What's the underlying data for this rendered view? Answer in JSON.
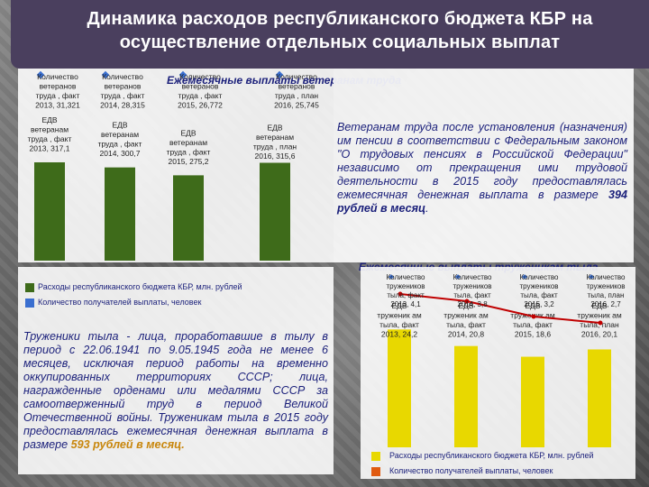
{
  "title": "Динамика расходов республиканского бюджета КБР на осуществление отдельных социальных выплат",
  "veterans": {
    "chart_title": "Ежемесячные выплаты ветеранам труда",
    "paragraph": {
      "part1": "Ветеранам труда после установления (назначения) им пенсии в соответствии с Федеральным законом \"О трудовых пенсиях в Российской Федерации\" независимо от прекращения ими трудовой деятельности в 2015 году предоставлялась ежемесячная денежная выплата в размере ",
      "amount": "394 рублей в месяц",
      "part2": "."
    }
  },
  "toilers": {
    "chart_title": "Ежемесячные выплаты труженикам тыла",
    "paragraph": {
      "part1": "Труженики тыла - лица, проработавшие в тылу в период с 22.06.1941 по 9.05.1945 года не менее 6 месяцев, исключая период работы на временно оккупированных территориях СССР; лица, награжденные орденами или медалями СССР за самоотверженный труд в период Великой Отечественной войны. Труженикам тыла в 2015 году предоставлялась ежемесячная денежная выплата в размере ",
      "amount": "593 рублей в месяц.",
      "part2": ""
    }
  },
  "legend": {
    "expenses": "Расходы республиканского бюджета КБР, млн. рублей",
    "recipients": "Количество получателей выплаты, человек"
  },
  "chart_data": [
    {
      "type": "bar",
      "title": "Ежемесячные выплаты ветеранам труда",
      "categories": [
        "2013",
        "2014",
        "2015",
        "2016"
      ],
      "series": [
        {
          "name": "Расходы республиканского бюджета КБР, млн. рублей",
          "values": [
            317.1,
            300.7,
            275.2,
            315.6
          ],
          "labels": [
            "ЕДВ ветеранам труда , факт 2013, 317,1",
            "ЕДВ ветеранам труда , факт 2014, 300,7",
            "ЕДВ ветеранам труда , факт 2015, 275,2",
            "ЕДВ ветеранам труда , план 2016, 315,6"
          ],
          "color": "#3e6b1a"
        },
        {
          "name": "Количество получателей выплаты, человек",
          "values": [
            31.321,
            28.315,
            26.772,
            25.745
          ],
          "labels": [
            "Количество ветеранов труда , факт 2013, 31,321",
            "Количество ветеранов труда , факт 2014, 28,315",
            "Количество ветеранов труда , факт 2015, 26,772",
            "Количество ветеранов труда , план 2016, 25,745"
          ],
          "color": "#3a6fd0"
        }
      ]
    },
    {
      "type": "bar",
      "title": "Ежемесячные выплаты труженикам тыла",
      "categories": [
        "2013",
        "2014",
        "2015",
        "2016"
      ],
      "series": [
        {
          "name": "Расходы республиканского бюджета КБР, млн. рублей",
          "values": [
            24.2,
            20.8,
            18.6,
            20.1
          ],
          "labels": [
            "ЕДВ труженик ам тыла, факт 2013, 24,2",
            "ЕДВ труженик ам тыла, факт 2014, 20,8",
            "ЕДВ труженик ам тыла, факт 2015, 18,6",
            "ЕДВ труженик ам тыла, план 2016, 20,1"
          ],
          "color": "#e8d800"
        },
        {
          "name": "Количество получателей выплаты, человек",
          "values": [
            4.1,
            3.8,
            3.2,
            2.7
          ],
          "labels": [
            "Количество тружеников тыла, факт 2013, 4,1",
            "Количество тружеников тыла, факт 2014, 3,8",
            "Количество тружеников тыла, факт 2015, 3,2",
            "Количество тружеников тыла, план 2016, 2,7"
          ],
          "color": "#c00000"
        }
      ]
    }
  ],
  "colors": {
    "title_bg": "#4a3f5e",
    "green_bar": "#3e6b1a",
    "yellow_bar": "#e8d800",
    "blue_marker": "#3a6fd0",
    "red_line": "#c00000",
    "orange_square": "#e05a10",
    "navy_text": "#1a1f7a"
  }
}
